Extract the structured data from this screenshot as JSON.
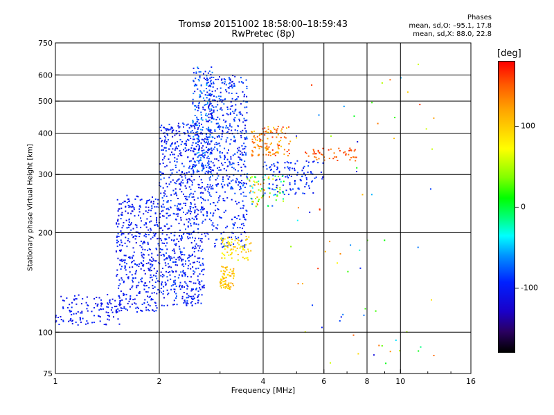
{
  "chart_data": {
    "type": "scatter",
    "title": "Tromsø 20151002 18:58:00–18:59:43",
    "subtitle": "RwPretec (8p)",
    "xlabel": "Frequency [MHz]",
    "ylabel": "Stationary phase Virtual Height [km]",
    "x_scale": "log",
    "y_scale": "log",
    "xlim": [
      1,
      16
    ],
    "ylim": [
      75,
      750
    ],
    "x_ticks": [
      1,
      2,
      4,
      6,
      8,
      10,
      16
    ],
    "y_ticks": [
      75,
      100,
      200,
      300,
      400,
      500,
      600,
      750
    ],
    "grid": true,
    "colorbar": {
      "label": "[deg]",
      "ticks": [
        100,
        0,
        -100
      ],
      "range": [
        -180,
        180
      ]
    },
    "phase_stats": {
      "title": "Phases",
      "o_mode": "mean, sd,O: –95.1, 17.8",
      "x_mode": "mean, sd,X: 88.0, 22.8"
    },
    "point_clusters": [
      {
        "x": [
          1.0,
          1.55
        ],
        "y": [
          105,
          130
        ],
        "n": 130,
        "phase": [
          -110,
          -80
        ]
      },
      {
        "x": [
          1.5,
          2.0
        ],
        "y": [
          115,
          260
        ],
        "n": 420,
        "phase": [
          -110,
          -75
        ]
      },
      {
        "x": [
          2.0,
          2.7
        ],
        "y": [
          120,
          430
        ],
        "n": 750,
        "phase": [
          -110,
          -70
        ]
      },
      {
        "x": [
          2.5,
          2.85
        ],
        "y": [
          300,
          640
        ],
        "n": 220,
        "phase": [
          -110,
          -40
        ]
      },
      {
        "x": [
          2.75,
          3.6
        ],
        "y": [
          270,
          600
        ],
        "n": 420,
        "phase": [
          -110,
          -60
        ]
      },
      {
        "x": [
          2.7,
          3.6
        ],
        "y": [
          180,
          280
        ],
        "n": 150,
        "phase": [
          -100,
          -70
        ]
      },
      {
        "x": [
          3.0,
          3.7
        ],
        "y": [
          165,
          195
        ],
        "n": 70,
        "phase": [
          60,
          110
        ]
      },
      {
        "x": [
          3.0,
          3.3
        ],
        "y": [
          135,
          160
        ],
        "n": 70,
        "phase": [
          80,
          120
        ]
      },
      {
        "x": [
          3.7,
          4.8
        ],
        "y": [
          340,
          420
        ],
        "n": 120,
        "phase": [
          90,
          170
        ]
      },
      {
        "x": [
          3.6,
          4.6
        ],
        "y": [
          240,
          300
        ],
        "n": 80,
        "phase": [
          -70,
          140
        ]
      },
      {
        "x": [
          4.0,
          6.0
        ],
        "y": [
          260,
          330
        ],
        "n": 110,
        "phase": [
          -105,
          -70
        ]
      },
      {
        "x": [
          5.2,
          7.5
        ],
        "y": [
          330,
          360
        ],
        "n": 50,
        "phase": [
          130,
          170
        ]
      },
      {
        "x": [
          4.8,
          12.5
        ],
        "y": [
          80,
          650
        ],
        "n": 70,
        "phase": [
          -110,
          170
        ]
      }
    ]
  }
}
